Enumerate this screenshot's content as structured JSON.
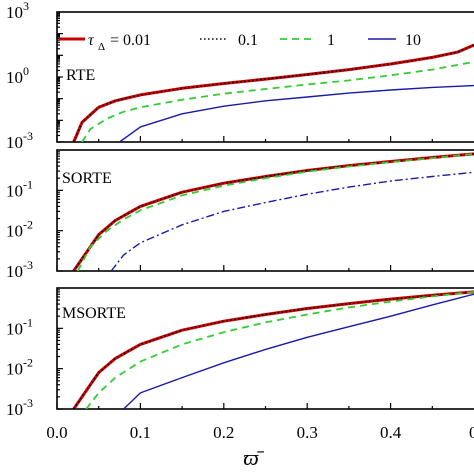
{
  "chart_data": [
    {
      "type": "line",
      "panel_label": "RTE",
      "yscale": "log",
      "ylim": [
        0.001,
        1000
      ],
      "xlim": [
        0,
        0.5
      ],
      "y_ticks": [
        {
          "value": 0.001,
          "base": "10",
          "exp": "-3"
        },
        {
          "value": 1,
          "base": "10",
          "exp": "0"
        },
        {
          "value": 1000,
          "base": "10",
          "exp": "3"
        }
      ],
      "series": [
        {
          "name": "0.01",
          "color": "#cc0000",
          "style": "solid",
          "width": 3,
          "x": [
            0.02,
            0.03,
            0.05,
            0.07,
            0.1,
            0.15,
            0.2,
            0.25,
            0.3,
            0.35,
            0.4,
            0.45,
            0.48,
            0.5
          ],
          "y": [
            0.001,
            0.008,
            0.04,
            0.08,
            0.15,
            0.3,
            0.5,
            0.8,
            1.3,
            2.2,
            4,
            8,
            14,
            30
          ]
        },
        {
          "name": "0.1",
          "color": "#000000",
          "style": "dot",
          "width": 1.6,
          "x": [
            0.02,
            0.03,
            0.05,
            0.07,
            0.1,
            0.15,
            0.2,
            0.25,
            0.3,
            0.35,
            0.4,
            0.45,
            0.48,
            0.5
          ],
          "y": [
            0.001,
            0.008,
            0.04,
            0.08,
            0.15,
            0.3,
            0.5,
            0.8,
            1.3,
            2.2,
            4,
            8,
            14,
            30
          ]
        },
        {
          "name": "1",
          "color": "#33cc33",
          "style": "dash",
          "width": 1.8,
          "x": [
            0.03,
            0.04,
            0.06,
            0.08,
            0.1,
            0.15,
            0.2,
            0.25,
            0.3,
            0.35,
            0.4,
            0.45,
            0.5
          ],
          "y": [
            0.001,
            0.004,
            0.012,
            0.025,
            0.04,
            0.09,
            0.17,
            0.28,
            0.45,
            0.7,
            1.2,
            2.2,
            5
          ]
        },
        {
          "name": "10",
          "color": "#1a1aaa",
          "style": "solid",
          "width": 1.4,
          "x": [
            0.075,
            0.1,
            0.15,
            0.2,
            0.25,
            0.3,
            0.35,
            0.4,
            0.45,
            0.5
          ],
          "y": [
            0.001,
            0.005,
            0.02,
            0.045,
            0.08,
            0.12,
            0.18,
            0.25,
            0.33,
            0.4
          ]
        }
      ]
    },
    {
      "type": "line",
      "panel_label": "SORTE",
      "yscale": "log",
      "ylim": [
        0.001,
        1
      ],
      "xlim": [
        0,
        0.5
      ],
      "y_ticks": [
        {
          "value": 0.001,
          "base": "10",
          "exp": "-3"
        },
        {
          "value": 0.01,
          "base": "10",
          "exp": "-2"
        },
        {
          "value": 0.1,
          "base": "10",
          "exp": "-1"
        }
      ],
      "series": [
        {
          "name": "0.01",
          "color": "#cc0000",
          "style": "solid",
          "width": 3,
          "x": [
            0.02,
            0.03,
            0.05,
            0.07,
            0.1,
            0.15,
            0.2,
            0.25,
            0.3,
            0.35,
            0.4,
            0.45,
            0.5
          ],
          "y": [
            0.001,
            0.002,
            0.008,
            0.018,
            0.04,
            0.09,
            0.15,
            0.22,
            0.31,
            0.41,
            0.52,
            0.65,
            0.8
          ]
        },
        {
          "name": "0.1",
          "color": "#000000",
          "style": "dot",
          "width": 1.6,
          "x": [
            0.02,
            0.03,
            0.05,
            0.07,
            0.1,
            0.15,
            0.2,
            0.25,
            0.3,
            0.35,
            0.4,
            0.45,
            0.5
          ],
          "y": [
            0.001,
            0.002,
            0.008,
            0.018,
            0.04,
            0.09,
            0.15,
            0.22,
            0.31,
            0.41,
            0.52,
            0.65,
            0.8
          ]
        },
        {
          "name": "1",
          "color": "#33cc33",
          "style": "dash",
          "width": 1.8,
          "x": [
            0.025,
            0.04,
            0.06,
            0.08,
            0.1,
            0.15,
            0.2,
            0.25,
            0.3,
            0.35,
            0.4,
            0.45,
            0.5
          ],
          "y": [
            0.001,
            0.004,
            0.01,
            0.019,
            0.032,
            0.075,
            0.13,
            0.2,
            0.29,
            0.39,
            0.5,
            0.63,
            0.8
          ]
        },
        {
          "name": "10",
          "color": "#1a1aaa",
          "style": "dashdot",
          "width": 1.4,
          "x": [
            0.065,
            0.08,
            0.1,
            0.15,
            0.2,
            0.25,
            0.3,
            0.35,
            0.4,
            0.45,
            0.5
          ],
          "y": [
            0.001,
            0.0025,
            0.005,
            0.014,
            0.03,
            0.05,
            0.08,
            0.12,
            0.17,
            0.22,
            0.28
          ]
        }
      ]
    },
    {
      "type": "line",
      "panel_label": "MSORTE",
      "yscale": "log",
      "ylim": [
        0.001,
        1
      ],
      "xlim": [
        0,
        0.5
      ],
      "xlabel": "ϖ̄",
      "x_ticks": [
        "0.0",
        "0.1",
        "0.2",
        "0.3",
        "0.4"
      ],
      "y_ticks": [
        {
          "value": 0.001,
          "base": "10",
          "exp": "-3"
        },
        {
          "value": 0.01,
          "base": "10",
          "exp": "-2"
        },
        {
          "value": 0.1,
          "base": "10",
          "exp": "-1"
        }
      ],
      "series": [
        {
          "name": "0.01",
          "color": "#cc0000",
          "style": "solid",
          "width": 3,
          "x": [
            0.02,
            0.03,
            0.05,
            0.07,
            0.1,
            0.15,
            0.2,
            0.25,
            0.3,
            0.35,
            0.4,
            0.45,
            0.5
          ],
          "y": [
            0.001,
            0.002,
            0.008,
            0.018,
            0.04,
            0.09,
            0.15,
            0.22,
            0.31,
            0.41,
            0.53,
            0.66,
            0.8
          ]
        },
        {
          "name": "0.1",
          "color": "#000000",
          "style": "dot",
          "width": 1.6,
          "x": [
            0.02,
            0.03,
            0.05,
            0.07,
            0.1,
            0.15,
            0.2,
            0.25,
            0.3,
            0.35,
            0.4,
            0.45,
            0.5
          ],
          "y": [
            0.001,
            0.002,
            0.008,
            0.018,
            0.04,
            0.09,
            0.15,
            0.22,
            0.31,
            0.41,
            0.53,
            0.66,
            0.8
          ]
        },
        {
          "name": "1",
          "color": "#33cc33",
          "style": "dash",
          "width": 1.8,
          "x": [
            0.035,
            0.05,
            0.07,
            0.1,
            0.15,
            0.2,
            0.25,
            0.3,
            0.35,
            0.4,
            0.45,
            0.5
          ],
          "y": [
            0.001,
            0.0025,
            0.006,
            0.015,
            0.04,
            0.08,
            0.14,
            0.22,
            0.33,
            0.46,
            0.62,
            0.8
          ]
        },
        {
          "name": "10",
          "color": "#1a1aaa",
          "style": "solid",
          "width": 1.4,
          "x": [
            0.08,
            0.1,
            0.15,
            0.2,
            0.25,
            0.3,
            0.35,
            0.4,
            0.45,
            0.5
          ],
          "y": [
            0.001,
            0.0025,
            0.006,
            0.014,
            0.03,
            0.06,
            0.11,
            0.2,
            0.38,
            0.7
          ]
        }
      ]
    }
  ],
  "legend": {
    "tau_symbol": "τ",
    "tau_subscript": "Δ",
    "items": [
      {
        "label": "= 0.01",
        "color": "#cc0000",
        "style": "solid"
      },
      {
        "label": "0.1",
        "color": "#000000",
        "style": "dot"
      },
      {
        "label": "1",
        "color": "#33cc33",
        "style": "dash"
      },
      {
        "label": "10",
        "color": "#1a1aaa",
        "style": "solid"
      }
    ]
  }
}
